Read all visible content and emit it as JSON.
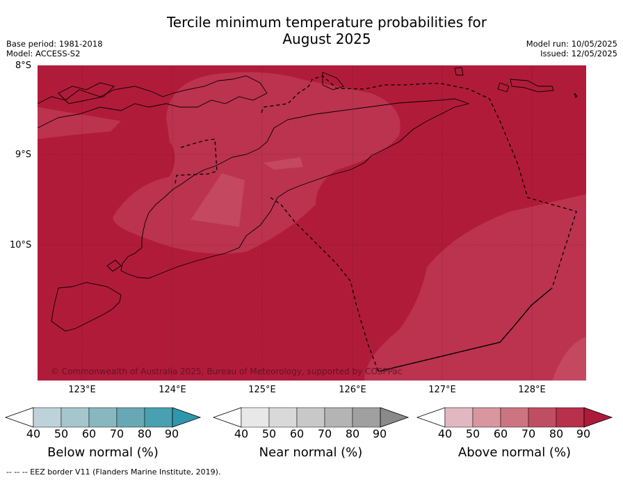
{
  "title_line1": "Tercile minimum temperature probabilities for",
  "title_line2": "August 2025",
  "meta_left": {
    "base_period": "Base period: 1981-2018",
    "model": "Model: ACCESS-S2"
  },
  "meta_right": {
    "model_run": "Model run: 10/05/2025",
    "issued": "Issued: 12/05/2025"
  },
  "map": {
    "lat_labels": [
      "8°S",
      "9°S",
      "10°S"
    ],
    "lon_labels": [
      "123°E",
      "124°E",
      "125°E",
      "126°E",
      "127°E",
      "128°E"
    ],
    "copyright": "© Commonwealth of Australia 2025, Bureau of Meteorology, supported by COSPPac",
    "colors": {
      "above_90": "#b11b3a",
      "above_80": "#bb334f",
      "above_70": "#c4485f"
    }
  },
  "colorbars": [
    {
      "title": "Below normal (%)",
      "ticks": [
        "40",
        "50",
        "60",
        "70",
        "80",
        "90"
      ],
      "colors": [
        "#ffffff",
        "#bdd3d9",
        "#a4c6cc",
        "#88b7c0",
        "#68a8b4",
        "#48a0b0",
        "#2f97ab"
      ]
    },
    {
      "title": "Near normal (%)",
      "ticks": [
        "40",
        "50",
        "60",
        "70",
        "80",
        "90"
      ],
      "colors": [
        "#ffffff",
        "#e8e8e8",
        "#d9d9d9",
        "#c8c8c8",
        "#b4b4b4",
        "#a0a0a0",
        "#8a8a8a"
      ]
    },
    {
      "title": "Above normal (%)",
      "ticks": [
        "40",
        "50",
        "60",
        "70",
        "80",
        "90"
      ],
      "colors": [
        "#ffffff",
        "#e2b8c0",
        "#d8969f",
        "#cc7580",
        "#c04e62",
        "#b8304b",
        "#ae1a3a"
      ]
    }
  ],
  "footer": "--  --  -- EEZ border V11 (Flanders Marine Institute, 2019)."
}
